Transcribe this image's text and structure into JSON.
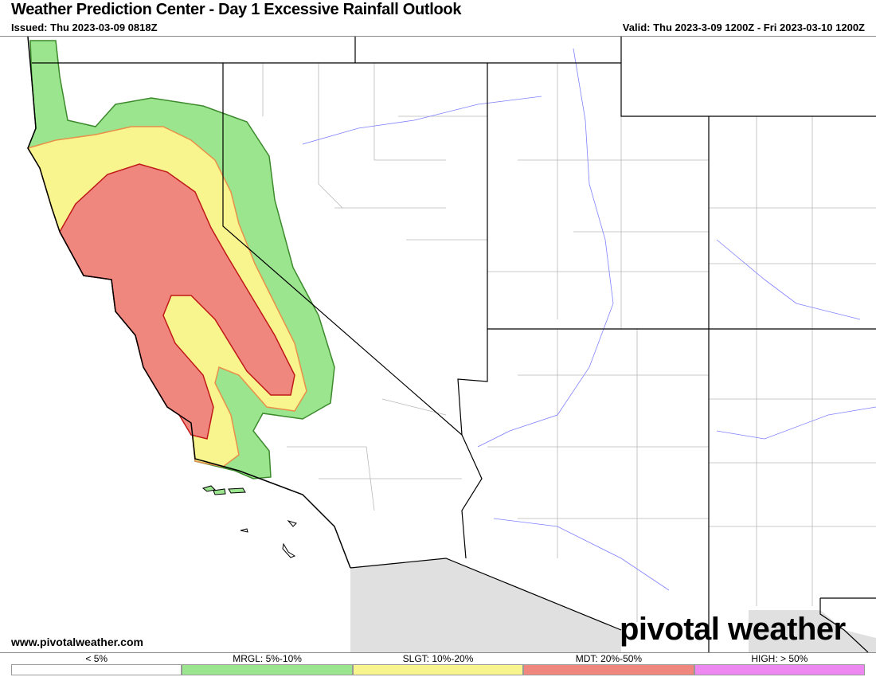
{
  "header": {
    "title": "Weather Prediction Center - Day 1 Excessive Rainfall Outlook",
    "issued": "Issued: Thu 2023-03-09 0818Z",
    "valid": "Valid: Thu 2023-3-09 1200Z - Fri 2023-03-10 1200Z"
  },
  "footer": {
    "website": "www.pivotalweather.com",
    "logo": "pivotal weather"
  },
  "legend": [
    {
      "label": "< 5%",
      "color": "#ffffff"
    },
    {
      "label": "MRGL: 5%-10%",
      "color": "#9be58e"
    },
    {
      "label": "SLGT: 10%-20%",
      "color": "#f8f58e"
    },
    {
      "label": "MDT: 20%-50%",
      "color": "#f0877f"
    },
    {
      "label": "HIGH: > 50%",
      "color": "#ec88f0"
    }
  ],
  "map_colors": {
    "outside_us": "#e0e0e0",
    "rivers": "#8080ff",
    "counties": "#b0b0b0",
    "states": "#000000"
  }
}
